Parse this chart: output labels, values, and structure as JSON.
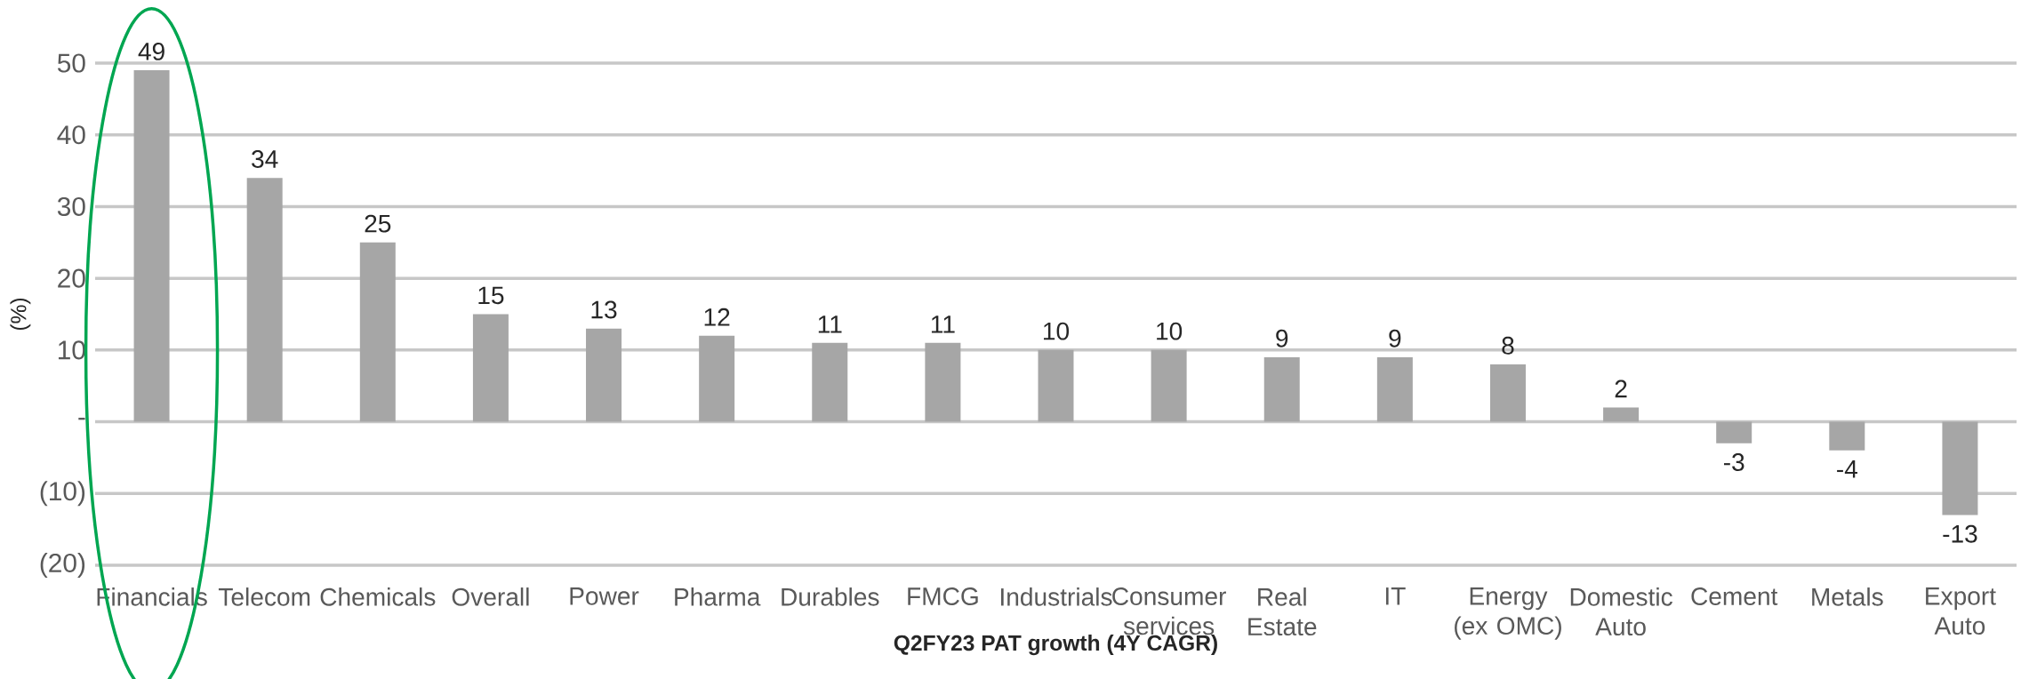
{
  "chart_data": {
    "type": "bar",
    "xlabel": "**Q2FY23 PAT growth (4Y CAGR)**",
    "ylabel": "(%)",
    "categories": [
      "Financials",
      "Telecom",
      "Chemicals",
      "Overall",
      "Power",
      "Pharma",
      "Durables",
      "FMCG",
      "Industrials",
      "Consumer services",
      "Real Estate",
      "IT",
      "Energy (ex OMC)",
      "Domestic Auto",
      "Cement",
      "Metals",
      "Export Auto"
    ],
    "values": [
      49,
      34,
      25,
      15,
      13,
      12,
      11,
      11,
      10,
      10,
      9,
      9,
      8,
      2,
      -3,
      -4,
      -13
    ],
    "color": "#a6a6a6",
    "data_labels": true,
    "grid": "y",
    "ylim": [
      -20,
      50
    ],
    "yticks": [
      {
        "value": -20,
        "label": "(20)"
      },
      {
        "value": -10,
        "label": "(10)"
      },
      {
        "value": 0,
        "label": "-"
      },
      10,
      20,
      30,
      40,
      50
    ]
  }
}
